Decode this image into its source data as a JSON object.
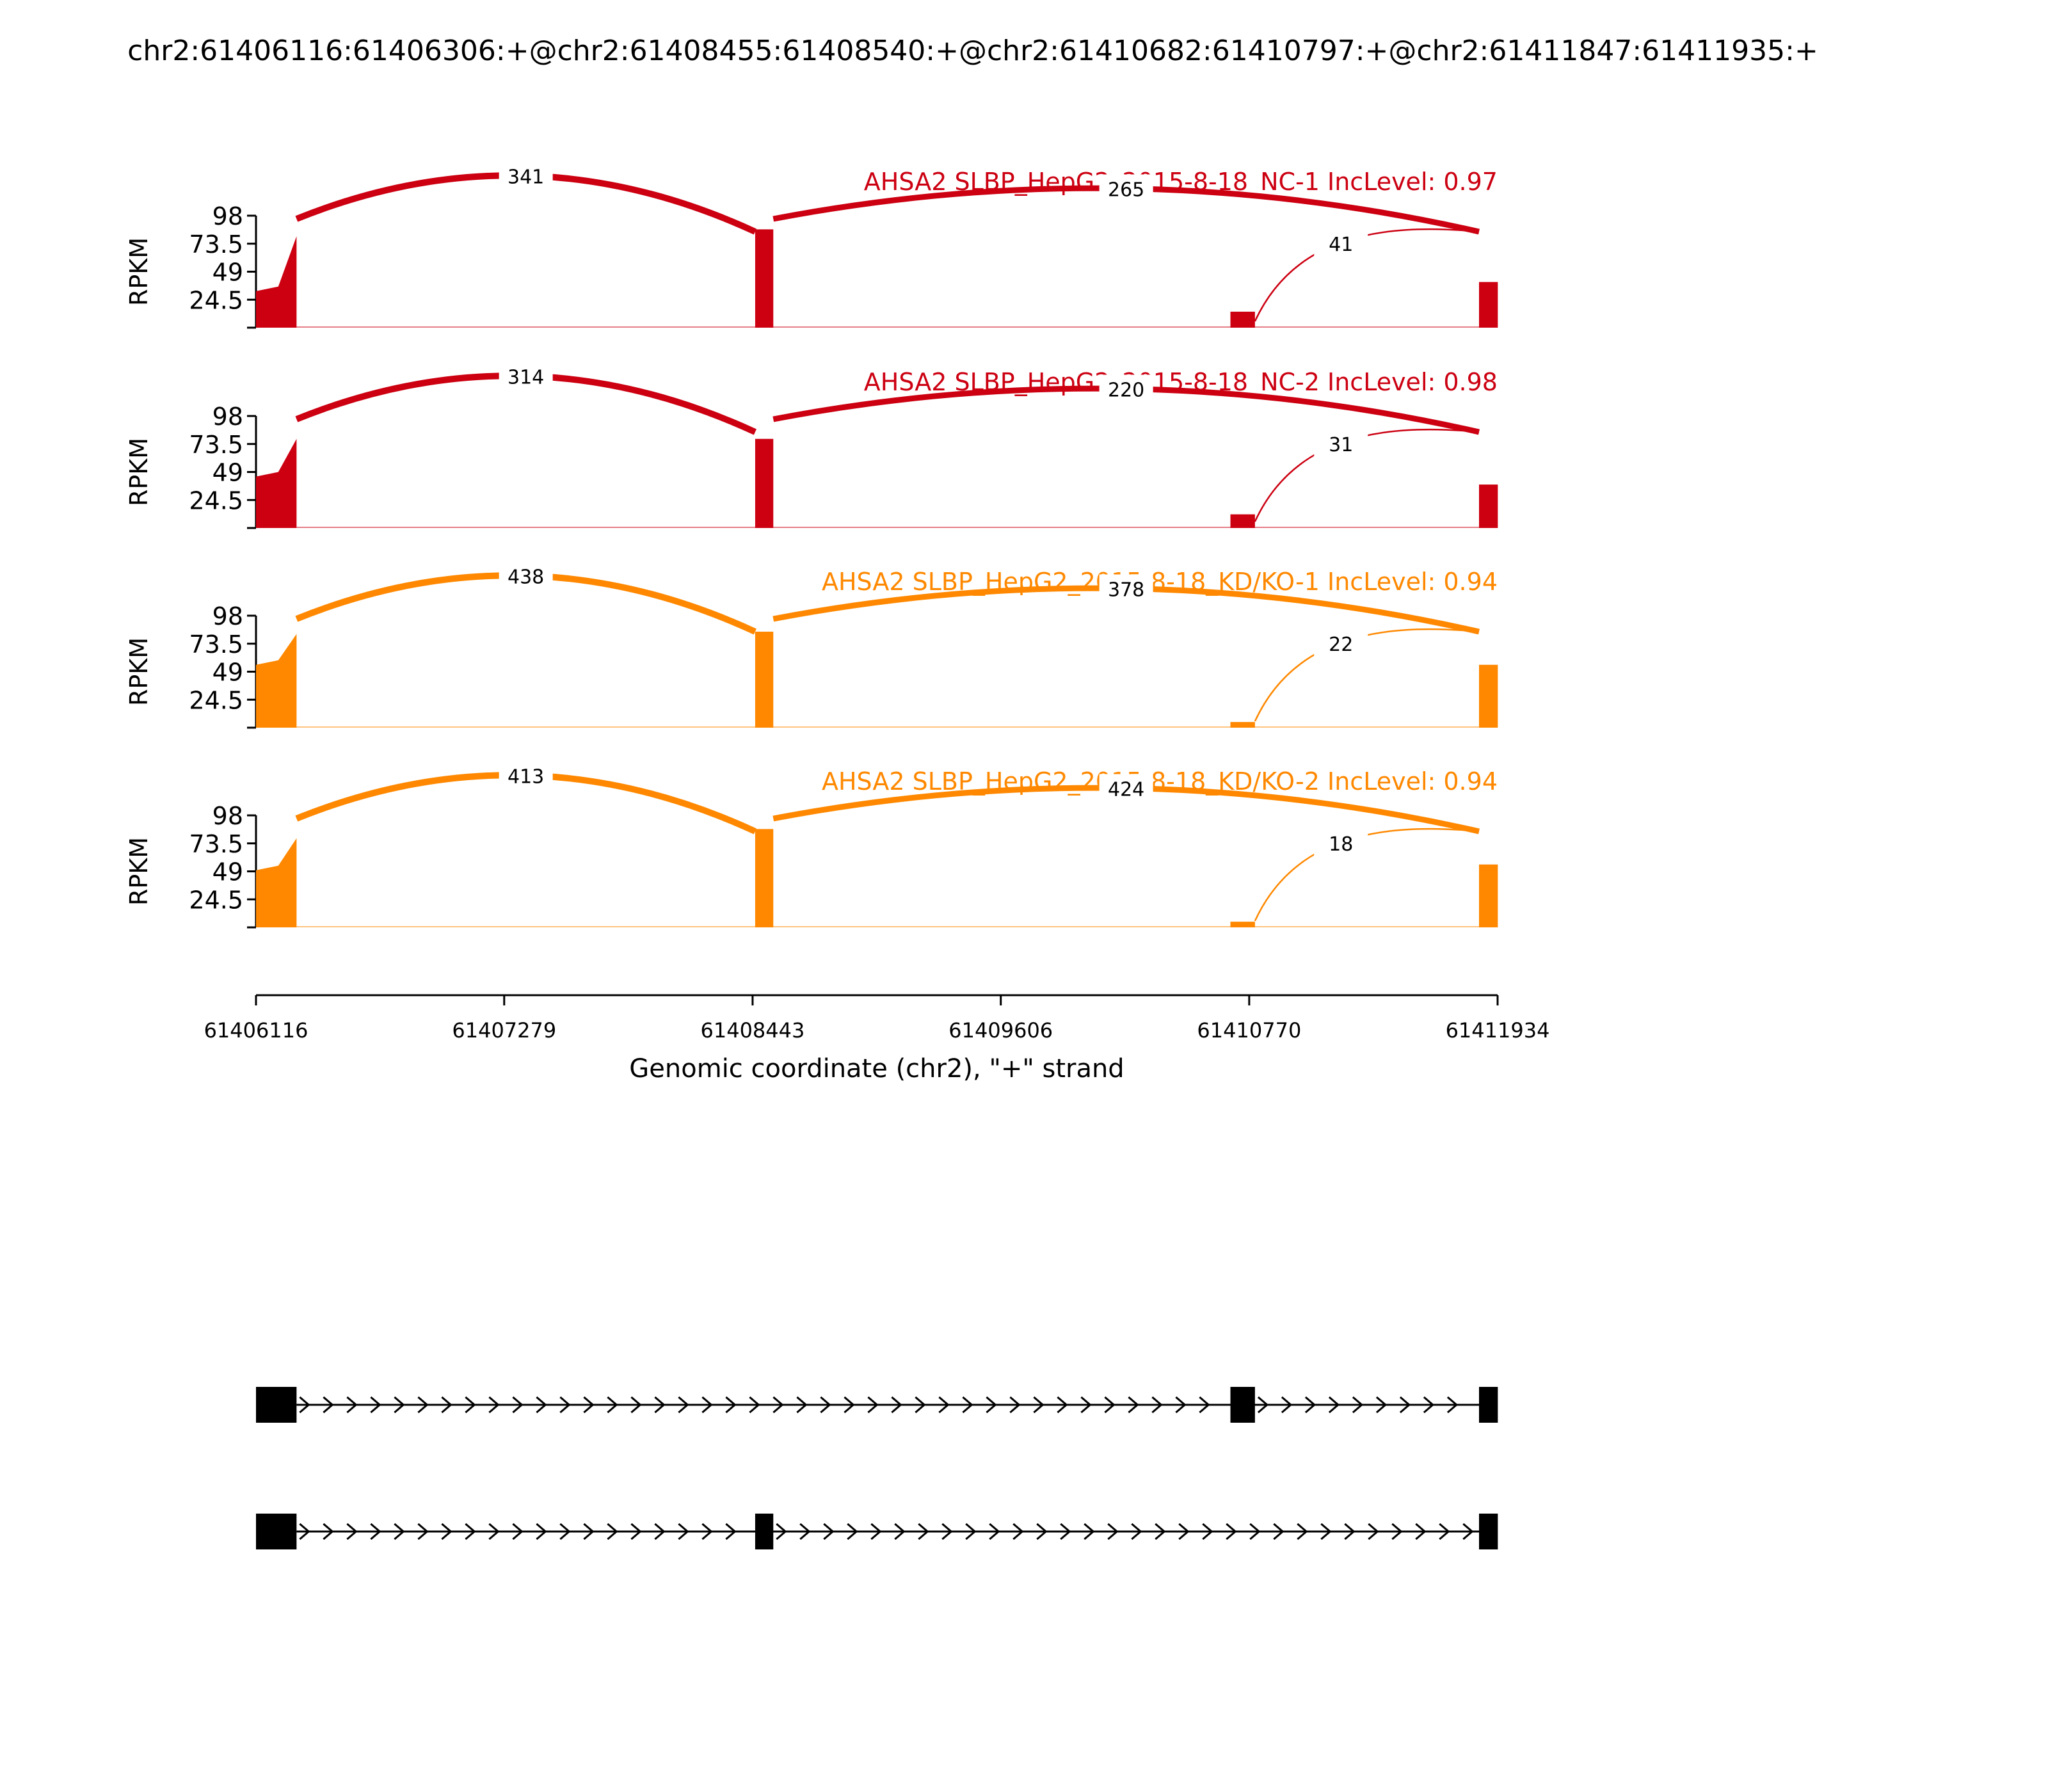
{
  "title": "chr2:61406116:61406306:+@chr2:61408455:61408540:+@chr2:61410682:61410797:+@chr2:61411847:61411935:+",
  "chart_data": {
    "type": "sashimi",
    "x_range": [
      61406116,
      61411934
    ],
    "x_ticks": [
      "61406116",
      "61407279",
      "61408443",
      "61409606",
      "61410770",
      "61411934"
    ],
    "xlabel": "Genomic coordinate (chr2), \"+\" strand",
    "ylabel": "RPKM",
    "y_range": [
      0,
      98
    ],
    "y_ticks": [
      "98",
      "73.5",
      "49",
      "24.5"
    ],
    "exons": [
      {
        "start": 61406116,
        "end": 61406306
      },
      {
        "start": 61408455,
        "end": 61408540
      },
      {
        "start": 61410682,
        "end": 61410797
      },
      {
        "start": 61411847,
        "end": 61411935
      }
    ],
    "colors": {
      "NC": "#cc0011",
      "KD": "#ff8800",
      "gene": "#000000"
    },
    "tracks": [
      {
        "label": "AHSA2 SLBP_HepG2_2015-8-18_NC-1 IncLevel: 0.97",
        "color": "#cc0011",
        "exon_rpkm": [
          [
            32,
            80
          ],
          86,
          14,
          40
        ],
        "junctions": [
          {
            "start": 61406306,
            "end": 61408455,
            "count": "341"
          },
          {
            "start": 61408540,
            "end": 61411847,
            "count": "265"
          },
          {
            "start": 61410797,
            "end": 61411847,
            "count": "41"
          }
        ]
      },
      {
        "label": "AHSA2 SLBP_HepG2_2015-8-18_NC-2 IncLevel: 0.98",
        "color": "#cc0011",
        "exon_rpkm": [
          [
            45,
            78
          ],
          78,
          12,
          38
        ],
        "junctions": [
          {
            "start": 61406306,
            "end": 61408455,
            "count": "314"
          },
          {
            "start": 61408540,
            "end": 61411847,
            "count": "220"
          },
          {
            "start": 61410797,
            "end": 61411847,
            "count": "31"
          }
        ]
      },
      {
        "label": "AHSA2 SLBP_HepG2_2015-8-18_KD/KO-1 IncLevel: 0.94",
        "color": "#ff8800",
        "exon_rpkm": [
          [
            55,
            82
          ],
          84,
          5,
          55
        ],
        "junctions": [
          {
            "start": 61406306,
            "end": 61408455,
            "count": "438"
          },
          {
            "start": 61408540,
            "end": 61411847,
            "count": "378"
          },
          {
            "start": 61410797,
            "end": 61411847,
            "count": "22"
          }
        ]
      },
      {
        "label": "AHSA2 SLBP_HepG2_2015-8-18_KD/KO-2 IncLevel: 0.94",
        "color": "#ff8800",
        "exon_rpkm": [
          [
            50,
            78
          ],
          86,
          5,
          55
        ],
        "junctions": [
          {
            "start": 61406306,
            "end": 61408455,
            "count": "413"
          },
          {
            "start": 61408540,
            "end": 61411847,
            "count": "424"
          },
          {
            "start": 61410797,
            "end": 61411847,
            "count": "18"
          }
        ]
      }
    ],
    "isoforms": [
      {
        "exons": [
          0,
          2,
          3
        ]
      },
      {
        "exons": [
          0,
          1,
          3
        ]
      }
    ]
  }
}
